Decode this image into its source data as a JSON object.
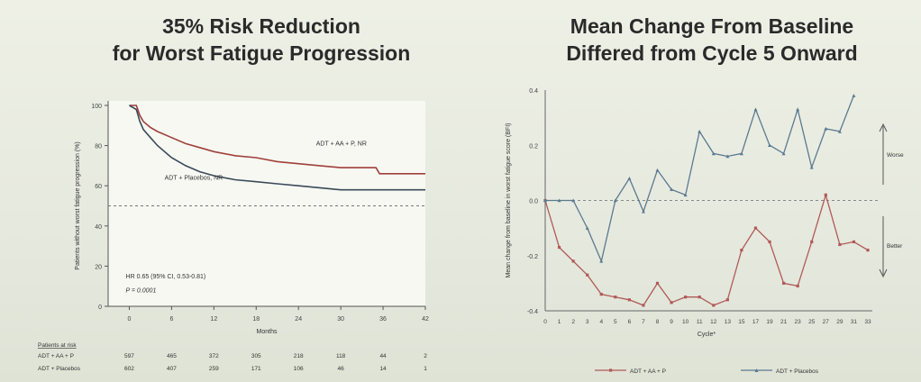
{
  "titles": {
    "left_line1": "35% Risk Reduction",
    "left_line2": "for Worst Fatigue Progression",
    "right_line1": "Mean Change From Baseline",
    "right_line2": "Differed from Cycle 5 Onward"
  },
  "risk_table": {
    "header": "Patients at risk",
    "rows": [
      {
        "label": "ADT + AA + P",
        "values": [
          597,
          465,
          372,
          305,
          218,
          118,
          44,
          2
        ]
      },
      {
        "label": "ADT + Placebos",
        "values": [
          602,
          407,
          259,
          171,
          106,
          46,
          14,
          1
        ]
      }
    ]
  },
  "chart_data": [
    {
      "type": "line",
      "xlabel": "Months",
      "ylabel": "Patients without worst fatigue progression (%)",
      "xlim": [
        -3,
        42
      ],
      "ylim": [
        0,
        100
      ],
      "xticks": [
        0,
        6,
        12,
        18,
        24,
        30,
        36,
        42
      ],
      "xtick_labels": [
        "0",
        "6",
        "12",
        "18",
        "24",
        "30",
        "36",
        "42"
      ],
      "yticks": [
        0,
        20,
        40,
        60,
        80,
        100
      ],
      "ytick_labels": [
        "0",
        "20",
        "40",
        "60",
        "80",
        "100"
      ],
      "reference_line_y": 50,
      "colors": {
        "ADT + AA + P": "#a0403a",
        "ADT + Placebos": "#3a4a5a"
      },
      "series": [
        {
          "name": "ADT + AA + P",
          "label": "ADT + AA + P, NR",
          "x": [
            0,
            1,
            1.5,
            2,
            3,
            4,
            6,
            8,
            10,
            12,
            15,
            18,
            21,
            24,
            27,
            30,
            33,
            35,
            35.5,
            38,
            42
          ],
          "y": [
            100,
            100,
            95,
            92,
            89,
            87,
            84,
            81,
            79,
            77,
            75,
            74,
            72,
            71,
            70,
            69,
            69,
            69,
            66,
            66,
            66
          ]
        },
        {
          "name": "ADT + Placebos",
          "label": "ADT + Placebos, NR",
          "x": [
            0,
            1,
            1.5,
            2,
            3,
            4,
            6,
            8,
            10,
            12,
            15,
            18,
            21,
            24,
            27,
            30,
            33,
            36,
            42
          ],
          "y": [
            100,
            98,
            92,
            88,
            84,
            80,
            74,
            70,
            67,
            65,
            63,
            62,
            61,
            60,
            59,
            58,
            58,
            58,
            58
          ]
        }
      ],
      "annotations": [
        "HR 0.65 (95% CI, 0.53-0.81)",
        "P = 0.0001"
      ]
    },
    {
      "type": "line",
      "xlabel": "Cycle*",
      "ylabel": "Mean change from baseline in worst fatigue score (BFI)",
      "ylim": [
        -0.4,
        0.4
      ],
      "yticks": [
        -0.4,
        -0.2,
        0.0,
        0.2,
        0.4
      ],
      "ytick_labels": [
        "-0.4",
        "-0.2",
        "0.0",
        "0.2",
        "0.4"
      ],
      "categories": [
        "0",
        "1",
        "2",
        "3",
        "4",
        "5",
        "6",
        "7",
        "8",
        "9",
        "10",
        "11",
        "12",
        "13",
        "15",
        "17",
        "19",
        "21",
        "23",
        "25",
        "27",
        "29",
        "31",
        "33"
      ],
      "xtick_labels": [
        "0",
        "1",
        "2",
        "3",
        "4",
        "5",
        "6",
        "7",
        "8",
        "9",
        "10",
        "11",
        "12",
        "13",
        "15",
        "17",
        "19",
        "21",
        "23",
        "25",
        "27",
        "29",
        "31",
        "33"
      ],
      "reference_line_y": 0,
      "colors": {
        "ADT + AA + P": "#b05a58",
        "ADT + Placebos": "#5a7a90"
      },
      "series": [
        {
          "name": "ADT + AA + P",
          "values": [
            0.0,
            -0.17,
            -0.22,
            -0.27,
            -0.34,
            -0.35,
            -0.36,
            -0.38,
            -0.3,
            -0.37,
            -0.35,
            -0.35,
            -0.38,
            -0.36,
            -0.18,
            -0.1,
            -0.15,
            -0.3,
            -0.31,
            -0.15,
            0.02,
            -0.16,
            -0.15,
            -0.18
          ]
        },
        {
          "name": "ADT + Placebos",
          "values": [
            0.0,
            0.0,
            0.0,
            -0.1,
            -0.22,
            0.0,
            0.08,
            -0.04,
            0.11,
            0.04,
            0.02,
            0.25,
            0.17,
            0.16,
            0.17,
            0.33,
            0.2,
            0.17,
            0.33,
            0.12,
            0.26,
            0.25,
            0.38,
            null
          ]
        }
      ],
      "side_labels": {
        "worse": "Worse",
        "better": "Better"
      },
      "legend_position": "bottom"
    }
  ]
}
